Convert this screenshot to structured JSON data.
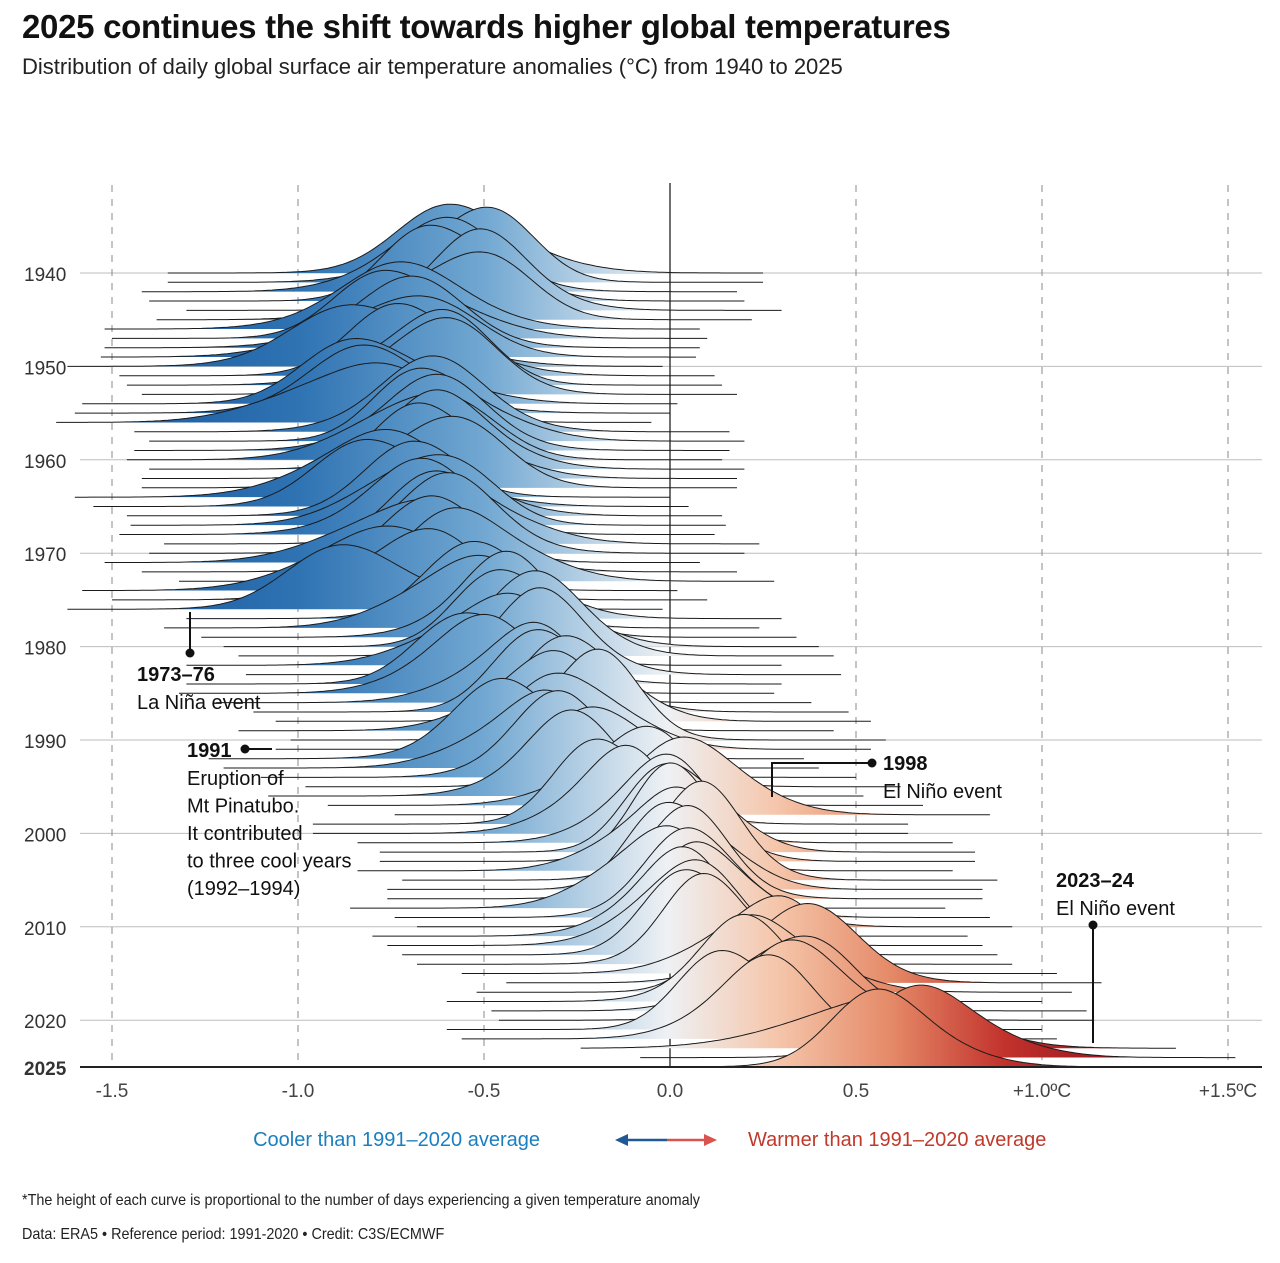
{
  "header": {
    "title": "2025 continues the shift towards higher global temperatures",
    "subtitle": "Distribution of daily global surface air temperature anomalies (°C) from 1940 to 2025"
  },
  "chart_data": {
    "type": "ridgeline",
    "title": "2025 continues the shift towards higher global temperatures",
    "subtitle": "Distribution of daily global surface air temperature anomalies (°C) from 1940 to 2025",
    "x_ticks": [
      -1.5,
      -1.0,
      -0.5,
      0.0,
      0.5,
      1.0,
      1.5
    ],
    "x_tick_labels": [
      "-1.5",
      "-1.0",
      "-0.5",
      "0.0",
      "0.5",
      "+1.0ºC",
      "+1.5ºC"
    ],
    "xlim": [
      -1.5,
      1.5
    ],
    "y_tick_labels": [
      "1940",
      "1950",
      "1960",
      "1970",
      "1980",
      "1990",
      "2000",
      "2010",
      "2020",
      "2025"
    ],
    "grid": true,
    "years_start": 1940,
    "years_end": 2025,
    "mean_anomaly": [
      -0.55,
      -0.55,
      -0.62,
      -0.6,
      -0.5,
      -0.58,
      -0.72,
      -0.7,
      -0.72,
      -0.73,
      -0.82,
      -0.68,
      -0.66,
      -0.62,
      -0.78,
      -0.8,
      -0.85,
      -0.64,
      -0.6,
      -0.64,
      -0.66,
      -0.6,
      -0.62,
      -0.62,
      -0.8,
      -0.75,
      -0.66,
      -0.65,
      -0.68,
      -0.56,
      -0.6,
      -0.72,
      -0.62,
      -0.52,
      -0.78,
      -0.7,
      -0.82,
      -0.5,
      -0.56,
      -0.46,
      -0.4,
      -0.36,
      -0.5,
      -0.34,
      -0.5,
      -0.52,
      -0.42,
      -0.32,
      -0.26,
      -0.36,
      -0.22,
      -0.26,
      -0.44,
      -0.4,
      -0.3,
      -0.18,
      -0.28,
      -0.12,
      0.06,
      -0.16,
      -0.16,
      -0.04,
      0.02,
      0.02,
      -0.04,
      0.08,
      0.04,
      0.04,
      -0.06,
      0.06,
      0.12,
      0.0,
      0.04,
      0.08,
      0.12,
      0.24,
      0.36,
      0.28,
      0.2,
      0.32,
      0.34,
      0.2,
      0.24,
      0.56,
      0.72,
      0.6
    ],
    "spread": [
      0.18,
      0.16,
      0.17,
      0.15,
      0.16,
      0.17,
      0.19,
      0.17,
      0.18,
      0.19,
      0.2,
      0.17,
      0.16,
      0.16,
      0.18,
      0.19,
      0.19,
      0.17,
      0.16,
      0.17,
      0.17,
      0.16,
      0.16,
      0.17,
      0.18,
      0.18,
      0.17,
      0.16,
      0.17,
      0.16,
      0.16,
      0.18,
      0.17,
      0.16,
      0.19,
      0.17,
      0.19,
      0.16,
      0.16,
      0.15,
      0.15,
      0.15,
      0.16,
      0.15,
      0.16,
      0.16,
      0.15,
      0.15,
      0.14,
      0.15,
      0.14,
      0.15,
      0.16,
      0.15,
      0.15,
      0.14,
      0.15,
      0.15,
      0.16,
      0.14,
      0.14,
      0.14,
      0.13,
      0.13,
      0.14,
      0.13,
      0.13,
      0.14,
      0.14,
      0.14,
      0.14,
      0.14,
      0.14,
      0.14,
      0.14,
      0.15,
      0.16,
      0.15,
      0.15,
      0.15,
      0.16,
      0.15,
      0.15,
      0.22,
      0.17,
      0.16
    ],
    "colors": {
      "cool": "#1a5a9e",
      "neutral": "#eef1f4",
      "warm": "#a50f1e"
    },
    "annotations": [
      {
        "bold": "1973–76",
        "lines": [
          "La Niña event"
        ]
      },
      {
        "bold": "1991",
        "lines": [
          "Eruption of",
          "Mt Pinatubo.",
          "It contributed",
          "to three cool years",
          "(1992–1994)"
        ]
      },
      {
        "bold": "1998",
        "lines": [
          "El Niño event"
        ]
      },
      {
        "bold": "2023–24",
        "lines": [
          "El Niño event"
        ]
      }
    ],
    "legend": {
      "cool": "Cooler than 1991–2020 average",
      "warm": "Warmer than 1991–2020 average",
      "cool_color": "#1a7fc0",
      "warm_color": "#c0392b"
    }
  },
  "footer": {
    "note": "*The height of each curve is proportional to the number of days experiencing a given temperature anomaly",
    "credit": "Data: ERA5 • Reference period: 1991-2020 • Credit: C3S/ECMWF"
  }
}
